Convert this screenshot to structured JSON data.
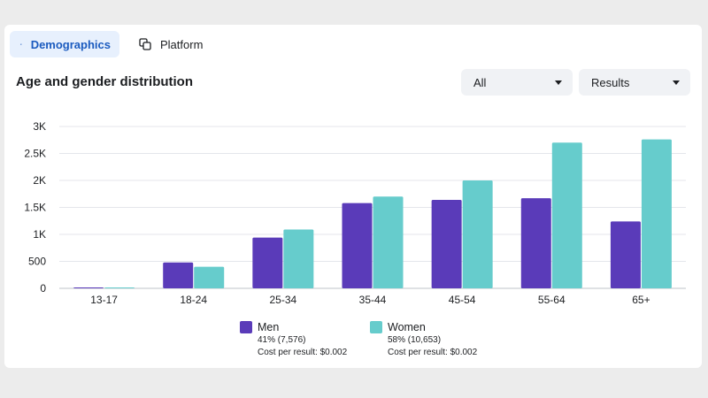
{
  "tabs": [
    {
      "label": "Demographics",
      "icon": "people-icon",
      "active": true
    },
    {
      "label": "Platform",
      "icon": "devices-icon",
      "active": false
    }
  ],
  "title": "Age and gender distribution",
  "filters": {
    "audience": "All",
    "metric": "Results"
  },
  "colors": {
    "men": "#5a3bb9",
    "women": "#66cccc",
    "grid": "#e4e6eb"
  },
  "chart_data": {
    "type": "bar",
    "title": "Age and gender distribution",
    "categories": [
      "13-17",
      "18-24",
      "25-34",
      "35-44",
      "45-54",
      "55-64",
      "65+"
    ],
    "series": [
      {
        "name": "Men",
        "values": [
          10,
          480,
          940,
          1580,
          1640,
          1670,
          1240
        ]
      },
      {
        "name": "Women",
        "values": [
          8,
          400,
          1090,
          1700,
          2000,
          2700,
          2760
        ]
      }
    ],
    "ylim": [
      0,
      3000
    ],
    "yticks": [
      0,
      500,
      1000,
      1500,
      2000,
      2500,
      3000
    ],
    "ytick_labels": [
      "0",
      "500",
      "1K",
      "1.5K",
      "2K",
      "2.5K",
      "3K"
    ],
    "grid": true
  },
  "legend": [
    {
      "name": "Men",
      "share": "41% (7,576)",
      "cost": "Cost per result: $0.002"
    },
    {
      "name": "Women",
      "share": "58% (10,653)",
      "cost": "Cost per result: $0.002"
    }
  ]
}
